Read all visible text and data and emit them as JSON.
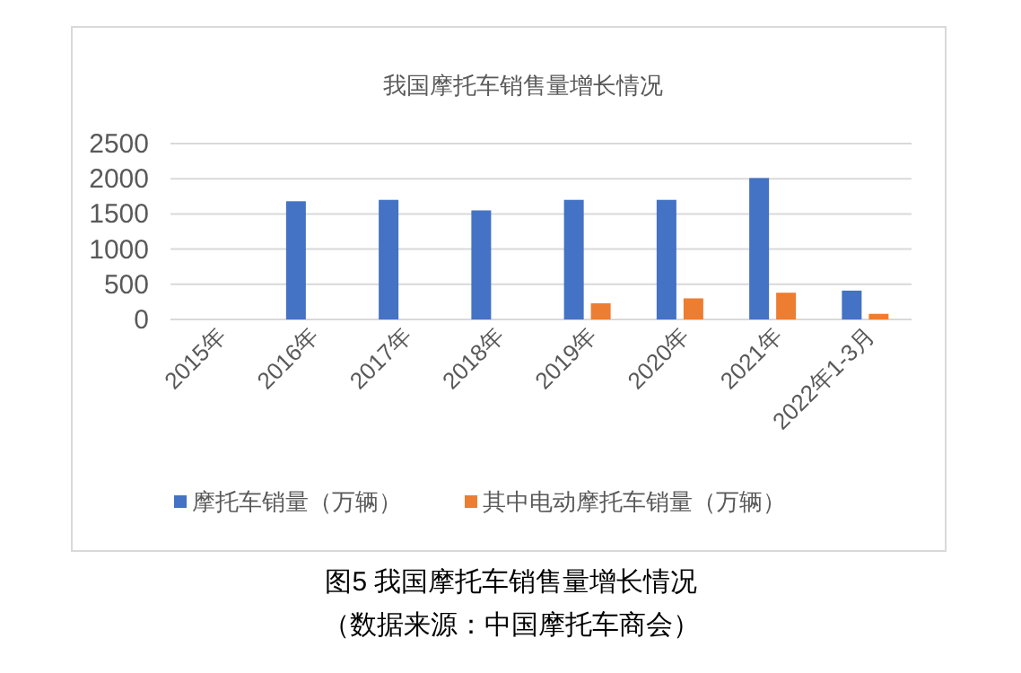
{
  "chart_data": {
    "type": "bar",
    "title": "我国摩托车销售量增长情况",
    "categories": [
      "2015年",
      "2016年",
      "2017年",
      "2018年",
      "2019年",
      "2020年",
      "2021年",
      "2022年1-3月"
    ],
    "series": [
      {
        "name": "摩托车销量（万辆）",
        "color": "#4472c4",
        "values": [
          null,
          1680,
          1700,
          1550,
          1700,
          1700,
          2010,
          410
        ]
      },
      {
        "name": "其中电动摩托车销量（万辆）",
        "color": "#ed7d31",
        "values": [
          null,
          null,
          null,
          null,
          230,
          300,
          380,
          80
        ]
      }
    ],
    "ylim": [
      0,
      2500
    ],
    "yticks": [
      0,
      500,
      1000,
      1500,
      2000,
      2500
    ],
    "grid": "y",
    "legend": "bottom",
    "annotations": [
      "图5  我国摩托车销售量增长情况",
      "（数据来源：中国摩托车商会）"
    ]
  }
}
